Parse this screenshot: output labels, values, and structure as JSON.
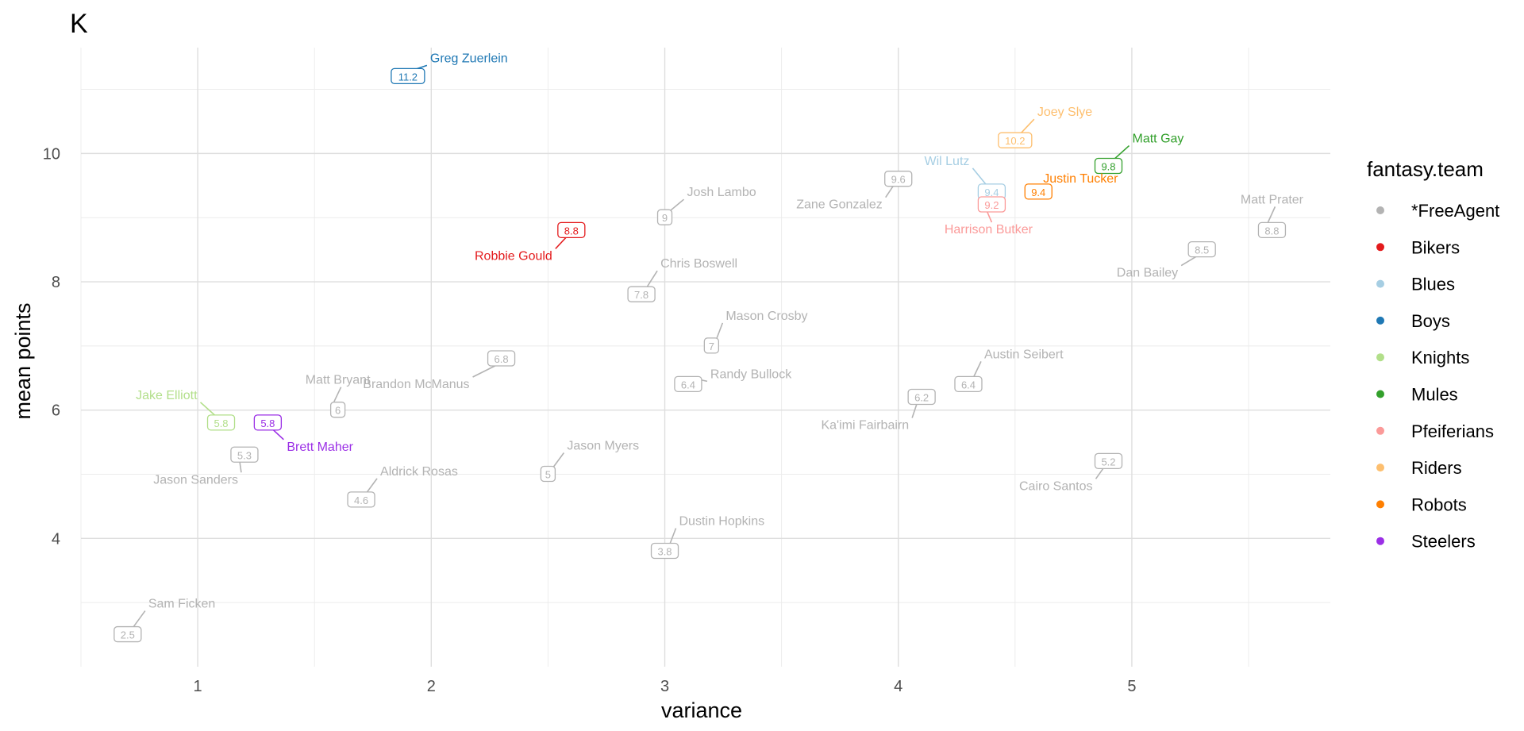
{
  "chart_data": {
    "type": "scatter",
    "title": "K",
    "xlabel": "variance",
    "ylabel": "mean points",
    "xlim": [
      0.5,
      5.85
    ],
    "ylim": [
      2.0,
      11.65
    ],
    "x_ticks": [
      1,
      2,
      3,
      4,
      5
    ],
    "y_ticks": [
      4,
      6,
      8,
      10
    ],
    "grid": true,
    "legend": {
      "title": "fantasy.team",
      "placement": "right",
      "entries": [
        {
          "name": "*FreeAgent",
          "color": "#b3b3b3"
        },
        {
          "name": "Bikers",
          "color": "#e31a1c"
        },
        {
          "name": "Blues",
          "color": "#a6cee3"
        },
        {
          "name": "Boys",
          "color": "#1f78b4"
        },
        {
          "name": "Knights",
          "color": "#b2df8a"
        },
        {
          "name": "Mules",
          "color": "#33a02c"
        },
        {
          "name": "Pfeiferians",
          "color": "#fb9a99"
        },
        {
          "name": "Riders",
          "color": "#fdbf6f"
        },
        {
          "name": "Robots",
          "color": "#ff7f00"
        },
        {
          "name": "Steelers",
          "color": "#9b2fe6"
        }
      ]
    },
    "points": [
      {
        "name": "Greg Zuerlein",
        "team": "Boys",
        "x": 1.9,
        "y": 11.2,
        "label": "11.2"
      },
      {
        "name": "Joey Slye",
        "team": "Riders",
        "x": 4.5,
        "y": 10.2,
        "label": "10.2"
      },
      {
        "name": "Matt Gay",
        "team": "Mules",
        "x": 4.9,
        "y": 9.8,
        "label": "9.8"
      },
      {
        "name": "Wil Lutz",
        "team": "Blues",
        "x": 4.4,
        "y": 9.4,
        "label": "9.4"
      },
      {
        "name": "Justin Tucker",
        "team": "Robots",
        "x": 4.6,
        "y": 9.4,
        "label": "9.4"
      },
      {
        "name": "Zane Gonzalez",
        "team": "*FreeAgent",
        "x": 4.0,
        "y": 9.6,
        "label": "9.6"
      },
      {
        "name": "Harrison Butker",
        "team": "Pfeiferians",
        "x": 4.4,
        "y": 9.2,
        "label": "9.2"
      },
      {
        "name": "Josh Lambo",
        "team": "*FreeAgent",
        "x": 3.0,
        "y": 9.0,
        "label": "9"
      },
      {
        "name": "Matt Prater",
        "team": "*FreeAgent",
        "x": 5.6,
        "y": 8.8,
        "label": "8.8"
      },
      {
        "name": "Robbie Gould",
        "team": "Bikers",
        "x": 2.6,
        "y": 8.8,
        "label": "8.8"
      },
      {
        "name": "Dan Bailey",
        "team": "*FreeAgent",
        "x": 5.3,
        "y": 8.5,
        "label": "8.5"
      },
      {
        "name": "Chris Boswell",
        "team": "*FreeAgent",
        "x": 2.9,
        "y": 7.8,
        "label": "7.8"
      },
      {
        "name": "Mason Crosby",
        "team": "*FreeAgent",
        "x": 3.2,
        "y": 7.0,
        "label": "7"
      },
      {
        "name": "Brandon McManus",
        "team": "*FreeAgent",
        "x": 2.3,
        "y": 6.8,
        "label": "6.8"
      },
      {
        "name": "Randy Bullock",
        "team": "*FreeAgent",
        "x": 3.1,
        "y": 6.4,
        "label": "6.4"
      },
      {
        "name": "Austin Seibert",
        "team": "*FreeAgent",
        "x": 4.3,
        "y": 6.4,
        "label": "6.4"
      },
      {
        "name": "Ka'imi Fairbairn",
        "team": "*FreeAgent",
        "x": 4.1,
        "y": 6.2,
        "label": "6.2"
      },
      {
        "name": "Matt Bryant",
        "team": "*FreeAgent",
        "x": 1.6,
        "y": 6.0,
        "label": "6"
      },
      {
        "name": "Jake Elliott",
        "team": "Knights",
        "x": 1.1,
        "y": 5.8,
        "label": "5.8"
      },
      {
        "name": "Brett Maher",
        "team": "Steelers",
        "x": 1.3,
        "y": 5.8,
        "label": "5.8"
      },
      {
        "name": "Jason Sanders",
        "team": "*FreeAgent",
        "x": 1.2,
        "y": 5.3,
        "label": "5.3"
      },
      {
        "name": "Cairo Santos",
        "team": "*FreeAgent",
        "x": 4.9,
        "y": 5.2,
        "label": "5.2"
      },
      {
        "name": "Jason Myers",
        "team": "*FreeAgent",
        "x": 2.5,
        "y": 5.0,
        "label": "5"
      },
      {
        "name": "Aldrick Rosas",
        "team": "*FreeAgent",
        "x": 1.7,
        "y": 4.6,
        "label": "4.6"
      },
      {
        "name": "Dustin Hopkins",
        "team": "*FreeAgent",
        "x": 3.0,
        "y": 3.8,
        "label": "3.8"
      },
      {
        "name": "Sam Ficken",
        "team": "*FreeAgent",
        "x": 0.7,
        "y": 2.5,
        "label": "2.5"
      }
    ]
  }
}
